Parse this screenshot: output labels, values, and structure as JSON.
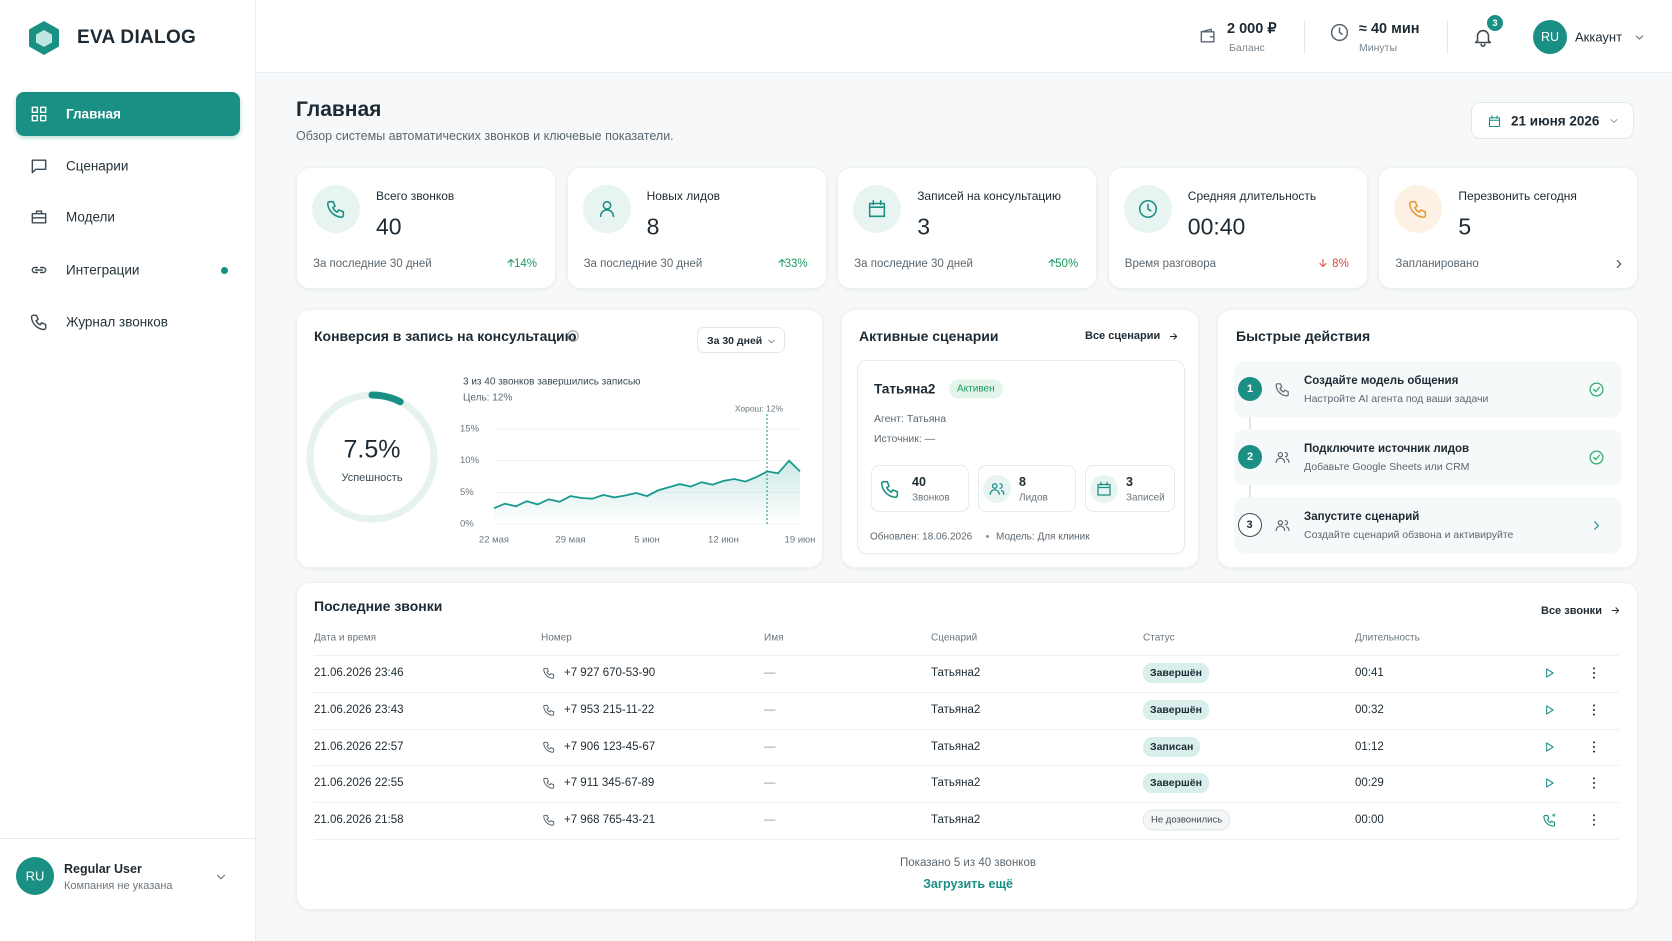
{
  "sidebar": {
    "brand": "EVA DIALOG",
    "nav": [
      {
        "label": "Главная",
        "active": true
      },
      {
        "label": "Сценарии"
      },
      {
        "label": "Модели"
      },
      {
        "label": "Интеграции",
        "dot": true
      },
      {
        "label": "Журнал звонков"
      }
    ],
    "user": {
      "avatar": "RU",
      "name": "Regular User",
      "company": "Компания не указана"
    }
  },
  "topbar": {
    "balance": {
      "value": "2 000 ₽",
      "label": "Баланс"
    },
    "minutes": {
      "value": "≈ 40 мин",
      "label": "Минуты"
    },
    "notifications": "3",
    "account": {
      "avatar": "RU",
      "label": "Аккаунт"
    }
  },
  "header": {
    "title": "Главная",
    "subtitle": "Обзор системы автоматических звонков и ключевые показатели.",
    "date": "21 июня 2026"
  },
  "stats": [
    {
      "label": "Всего звонков",
      "value": "40",
      "note": "За последние 30 дней",
      "change": "14%",
      "trend": "up"
    },
    {
      "label": "Новых лидов",
      "value": "8",
      "note": "За последние 30 дней",
      "change": "33%",
      "trend": "up"
    },
    {
      "label": "Записей на консультацию",
      "value": "3",
      "note": "За последние 30 дней",
      "change": "50%",
      "trend": "up"
    },
    {
      "label": "Средняя длительность",
      "value": "00:40",
      "note": "Время разговора",
      "change": "8%",
      "trend": "down"
    },
    {
      "label": "Перезвонить сегодня",
      "value": "5",
      "note": "Запланировано"
    }
  ],
  "conversion": {
    "title": "Конверсия в запись на консультацию",
    "period": "За 30 дней",
    "gauge": {
      "value": 7.5,
      "label": "7.5%",
      "caption": "Успешность"
    },
    "summary": "3 из 40 звонков завершились записью",
    "goal": "Цель: 12%",
    "target": "Хорош: 12%",
    "chart": {
      "type": "line",
      "color": "#1a9a8e",
      "categories": [
        "22 мая",
        null,
        null,
        null,
        null,
        null,
        null,
        "29 мая",
        null,
        null,
        null,
        null,
        null,
        null,
        "5 июн",
        null,
        null,
        null,
        null,
        null,
        null,
        "12 июн",
        null,
        null,
        null,
        null,
        null,
        null,
        "19 июн"
      ],
      "values": [
        2.5,
        3.2,
        2.8,
        3.6,
        3.1,
        3.9,
        3.5,
        4.4,
        4.1,
        4.0,
        4.6,
        4.2,
        4.5,
        4.9,
        4.4,
        5.3,
        5.8,
        6.3,
        5.9,
        6.6,
        6.2,
        6.8,
        7.1,
        6.7,
        7.4,
        8.3,
        8.0,
        10.0,
        8.3
      ],
      "ylim": [
        0,
        15
      ],
      "yticks": [
        {
          "value": 0,
          "label": "0%"
        },
        {
          "value": 5,
          "label": "5%"
        },
        {
          "value": 10,
          "label": "10%"
        },
        {
          "value": 15,
          "label": "15%"
        }
      ],
      "grid": true
    }
  },
  "scenarios": {
    "title": "Активные сценарии",
    "link": "Все сценарии",
    "card": {
      "name": "Татьяна2",
      "status": "Активен",
      "agent": "Агент: Татьяна",
      "source": "Источник: —",
      "metrics": [
        {
          "value": "40",
          "label": "Звонков"
        },
        {
          "value": "8",
          "label": "Лидов"
        },
        {
          "value": "3",
          "label": "Записей"
        }
      ],
      "updated": "Обновлен: 18.06.2026",
      "model": "Модель: Для клиник"
    }
  },
  "actions": {
    "title": "Быстрые действия",
    "steps": [
      {
        "number": "1",
        "title": "Создайте модель общения",
        "description": "Настройте AI агента под ваши задачи",
        "done": true
      },
      {
        "number": "2",
        "title": "Подключите источник лидов",
        "description": "Добавьте Google Sheets или CRM",
        "done": true
      },
      {
        "number": "3",
        "title": "Запустите сценарий",
        "description": "Создайте сценарий обзвона и активируйте",
        "done": false
      }
    ]
  },
  "calls": {
    "title": "Последние звонки",
    "link": "Все звонки",
    "columns": [
      "Дата и время",
      "Номер",
      "Имя",
      "Сценарий",
      "Статус",
      "Длительность"
    ],
    "rows": [
      {
        "cells": [
          "21.06.2026 23:46",
          "+7 927 670-53-90",
          "—",
          "Татьяна2",
          "Завершён",
          "00:41"
        ],
        "answered": true
      },
      {
        "cells": [
          "21.06.2026 23:43",
          "+7 953 215-11-22",
          "—",
          "Татьяна2",
          "Завершён",
          "00:32"
        ],
        "answered": true
      },
      {
        "cells": [
          "21.06.2026 22:57",
          "+7 906 123-45-67",
          "—",
          "Татьяна2",
          "Записан",
          "01:12"
        ],
        "answered": true
      },
      {
        "cells": [
          "21.06.2026 22:55",
          "+7 911 345-67-89",
          "—",
          "Татьяна2",
          "Завершён",
          "00:29"
        ],
        "answered": true
      },
      {
        "cells": [
          "21.06.2026 21:58",
          "+7 968 765-43-21",
          "—",
          "Татьяна2",
          "Не дозвонились",
          "00:00"
        ],
        "answered": false
      }
    ],
    "footer": "Показано 5 из 40 звонков",
    "load_more": "Загрузить ещё"
  }
}
